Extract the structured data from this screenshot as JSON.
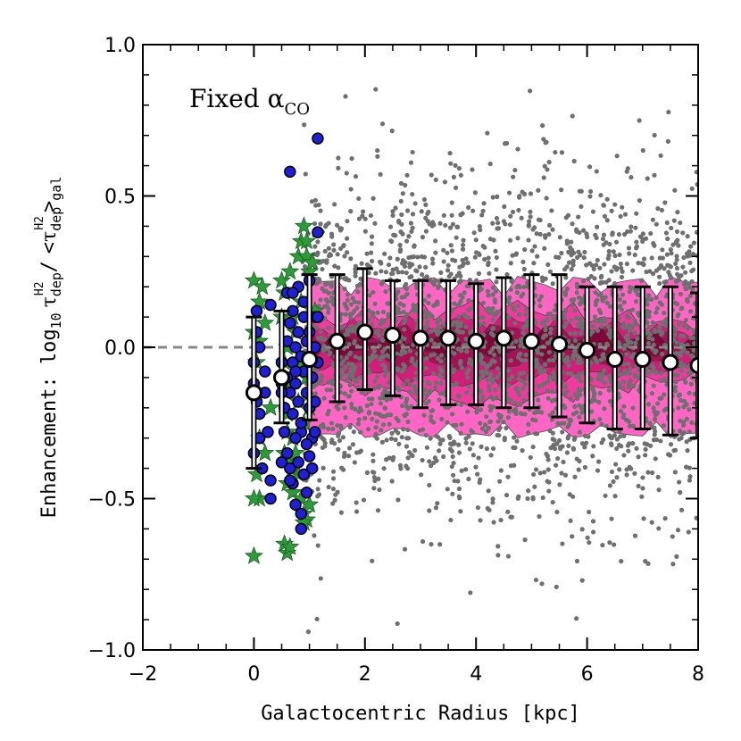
{
  "chart_data": {
    "type": "scatter",
    "xlabel": "Galactocentric Radius [kpc]",
    "ylabel": {
      "main": "Enhancement: log",
      "sub10": "10",
      "tau": "τ",
      "dep": "dep",
      "h2": "H2",
      "slash": "/",
      "lt": "<",
      "gt": ">",
      "gal": "gal"
    },
    "annotation": {
      "text": "Fixed α",
      "sub": "CO"
    },
    "xlim": [
      -2,
      8
    ],
    "ylim": [
      -1.0,
      1.0
    ],
    "x_ticks": [
      -2,
      0,
      2,
      4,
      6,
      8
    ],
    "x_tick_labels": [
      "−2",
      "0",
      "2",
      "4",
      "6",
      "8"
    ],
    "y_ticks": [
      -1.0,
      -0.5,
      0.0,
      0.5,
      1.0
    ],
    "y_tick_labels": [
      "−1.0",
      "−0.5",
      "0.0",
      "0.5",
      "1.0"
    ],
    "reference_line": {
      "y": 0.0,
      "style": "dashed",
      "color": "#888888"
    },
    "colors": {
      "scatter": "#6f6f6f",
      "blue": "#1f1fd6",
      "green": "#2f9a3a",
      "contour_levels": [
        "#ff66c4",
        "#f03a9e",
        "#d11e78",
        "#a90f55",
        "#7e0638"
      ]
    },
    "binned_medians": {
      "name": "binned median",
      "x": [
        0.0,
        0.5,
        1.0,
        1.5,
        2.0,
        2.5,
        3.0,
        3.5,
        4.0,
        4.5,
        5.0,
        5.5,
        6.0,
        6.5,
        7.0,
        7.5,
        8.0
      ],
      "y": [
        -0.15,
        -0.1,
        -0.04,
        0.02,
        0.05,
        0.04,
        0.03,
        0.03,
        0.02,
        0.03,
        0.02,
        0.01,
        -0.01,
        -0.04,
        -0.04,
        -0.05,
        -0.06
      ],
      "yerr_low": [
        0.25,
        0.15,
        0.2,
        0.2,
        0.19,
        0.2,
        0.23,
        0.22,
        0.21,
        0.23,
        0.22,
        0.24,
        0.24,
        0.23,
        0.23,
        0.24,
        0.24
      ],
      "yerr_high": [
        0.25,
        0.22,
        0.28,
        0.22,
        0.21,
        0.18,
        0.19,
        0.19,
        0.19,
        0.2,
        0.22,
        0.23,
        0.21,
        0.24,
        0.24,
        0.25,
        0.24
      ]
    },
    "blue_points": {
      "name": "blue circles",
      "x": [
        0.0,
        0.0,
        0.05,
        0.05,
        0.1,
        0.1,
        0.1,
        0.15,
        0.2,
        0.25,
        0.3,
        0.3,
        0.0,
        0.05,
        0.2,
        0.5,
        0.5,
        0.55,
        0.6,
        0.6,
        0.65,
        0.65,
        0.7,
        0.7,
        0.75,
        0.75,
        0.8,
        0.8,
        0.85,
        0.85,
        0.9,
        0.9,
        0.95,
        0.95,
        1.0,
        1.0,
        1.05,
        1.05,
        1.1,
        1.1,
        1.15,
        0.55,
        0.6,
        0.65,
        0.7,
        0.75,
        0.8,
        0.85,
        0.9,
        0.95,
        1.0,
        1.05,
        1.1,
        0.6,
        0.7,
        0.8,
        0.9,
        1.0,
        1.1,
        0.5,
        0.65,
        0.75,
        0.85,
        0.95,
        1.15,
        1.15,
        0.65,
        0.7,
        0.85,
        1.15,
        0.3,
        0.5,
        0.75
      ],
      "y": [
        -0.05,
        -0.12,
        0.05,
        -0.18,
        -0.22,
        0.0,
        -0.3,
        -0.4,
        -0.08,
        -0.28,
        0.14,
        -0.5,
        -0.35,
        0.12,
        -0.15,
        -0.05,
        -0.12,
        -0.2,
        0.02,
        -0.1,
        -0.15,
        0.08,
        -0.05,
        -0.22,
        0.0,
        -0.12,
        0.05,
        -0.18,
        -0.03,
        -0.28,
        0.1,
        -0.08,
        -0.15,
        0.02,
        -0.2,
        0.05,
        -0.1,
        -0.3,
        0.0,
        -0.18,
        -0.05,
        -0.28,
        -0.35,
        -0.4,
        -0.45,
        -0.3,
        -0.38,
        -0.25,
        -0.42,
        -0.32,
        -0.36,
        -0.4,
        -0.28,
        0.18,
        0.12,
        0.2,
        0.15,
        0.22,
        0.1,
        -0.38,
        -0.44,
        -0.52,
        -0.55,
        -0.48,
        0.38,
        0.1,
        0.58,
        0.18,
        -0.6,
        0.69,
        -0.44,
        -0.15,
        -0.08
      ]
    },
    "green_stars": {
      "name": "green stars",
      "x": [
        0.0,
        0.0,
        0.05,
        0.05,
        0.1,
        0.1,
        0.15,
        0.2,
        0.2,
        0.3,
        0.05,
        0.1,
        0.0,
        0.5,
        0.5,
        0.55,
        0.55,
        0.6,
        0.6,
        0.65,
        0.65,
        0.7,
        0.7,
        0.75,
        0.8,
        0.8,
        0.85,
        0.9,
        0.9,
        0.95,
        0.95,
        1.0,
        1.0,
        1.05,
        1.1,
        0.55,
        0.6,
        0.65,
        0.7,
        0.8,
        0.85,
        0.9,
        0.95,
        1.0,
        0.55,
        0.6,
        0.85,
        0.95,
        0.9,
        0.7,
        0.0,
        0.1,
        0.6,
        0.65,
        0.75,
        0.85
      ],
      "y": [
        0.22,
        0.05,
        -0.05,
        -0.15,
        0.15,
        -0.3,
        0.2,
        -0.35,
        0.08,
        -0.2,
        -0.42,
        -0.5,
        -0.69,
        0.22,
        0.1,
        -0.05,
        0.18,
        0.0,
        -0.22,
        0.25,
        -0.12,
        0.1,
        -0.3,
        0.05,
        0.3,
        -0.18,
        0.15,
        0.4,
        -0.25,
        0.3,
        -0.1,
        0.25,
        -0.2,
        0.28,
        0.12,
        -0.35,
        -0.45,
        -0.38,
        -0.48,
        -0.42,
        -0.5,
        -0.55,
        -0.57,
        -0.52,
        -0.65,
        -0.68,
        0.35,
        0.35,
        -0.58,
        -0.4,
        -0.5,
        0.02,
        -0.28,
        -0.66,
        -0.35,
        -0.05
      ]
    },
    "background_scatter": {
      "name": "all pixels",
      "count": 2600,
      "x_range": [
        0.9,
        8.0
      ],
      "y_median": 0.0,
      "y_sigma": 0.27
    },
    "contours": {
      "x_range": [
        1.0,
        8.0
      ],
      "levels": [
        {
          "y_low": -0.27,
          "y_high": 0.2
        },
        {
          "y_low": -0.18,
          "y_high": 0.13
        },
        {
          "y_low": -0.11,
          "y_high": 0.08
        },
        {
          "y_low": -0.05,
          "y_high": 0.05
        },
        {
          "y_low": -0.01,
          "y_high": 0.03
        }
      ]
    }
  }
}
